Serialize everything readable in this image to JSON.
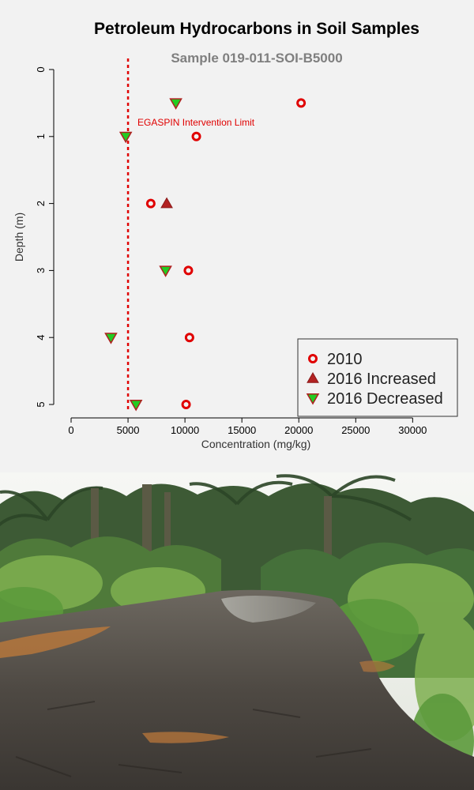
{
  "chart_data": {
    "type": "scatter",
    "title": "Petroleum Hydrocarbons in Soil Samples",
    "subtitle": "Sample  019-011-SOI-B5000",
    "xlabel": "Concentration (mg/kg)",
    "ylabel": "Depth (m)",
    "xlim": [
      0,
      34000
    ],
    "ylim": [
      0,
      5
    ],
    "y_reversed": true,
    "x_ticks": [
      "0",
      "5000",
      "10000",
      "15000",
      "20000",
      "25000",
      "30000"
    ],
    "y_ticks": [
      "0",
      "1",
      "2",
      "3",
      "4",
      "5"
    ],
    "grid": false,
    "legend_position": "bottom-right",
    "reference_line": {
      "x": 5000,
      "label": "EGASPIN Intervention Limit",
      "color": "#e00000"
    },
    "series": [
      {
        "name": "2010",
        "marker": "open-circle",
        "color": "#e00000",
        "points": [
          [
            20200,
            0.5
          ],
          [
            11000,
            1.0
          ],
          [
            7000,
            2.0
          ],
          [
            10300,
            3.0
          ],
          [
            10400,
            4.0
          ],
          [
            10100,
            5.0
          ]
        ]
      },
      {
        "name": "2016 Increased",
        "marker": "triangle-up",
        "color": "#b22222",
        "points": [
          [
            8400,
            2.0
          ]
        ]
      },
      {
        "name": "2016 Decreased",
        "marker": "triangle-down",
        "color": "#22cc22",
        "points": [
          [
            9200,
            0.5
          ],
          [
            4800,
            1.0
          ],
          [
            8300,
            3.0
          ],
          [
            3500,
            4.0
          ],
          [
            5700,
            5.0
          ]
        ]
      }
    ]
  },
  "photo": {
    "description_icon": "photo-icon",
    "sky": "#f4f5f2",
    "foliage_dark": "#2f4a2a",
    "foliage_mid": "#4f7a3a",
    "foliage_light": "#7fb050",
    "mud": "#55504a",
    "oil_sheen": "#c27b3a",
    "water": "#9a9890"
  }
}
